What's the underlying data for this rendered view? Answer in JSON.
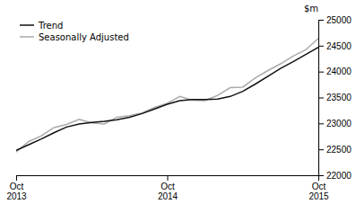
{
  "chart_data": {
    "type": "line",
    "y_label": "$m",
    "categories": [
      "Oct\n2013",
      null,
      null,
      null,
      null,
      null,
      null,
      null,
      null,
      null,
      null,
      null,
      "Oct\n2014",
      null,
      null,
      null,
      null,
      null,
      null,
      null,
      null,
      null,
      null,
      null,
      "Oct\n2015"
    ],
    "series": [
      {
        "name": "Seasonally Adjusted",
        "color": "#aaaaaa",
        "values": [
          22450,
          22650,
          22760,
          22920,
          22980,
          23080,
          23010,
          22990,
          23120,
          23150,
          23200,
          23310,
          23390,
          23520,
          23450,
          23440,
          23540,
          23690,
          23700,
          23880,
          24020,
          24150,
          24300,
          24420,
          24640
        ]
      },
      {
        "name": "Trend",
        "color": "#111111",
        "values": [
          22480,
          22590,
          22700,
          22820,
          22930,
          22990,
          23020,
          23040,
          23070,
          23120,
          23190,
          23280,
          23370,
          23440,
          23460,
          23460,
          23470,
          23520,
          23620,
          23760,
          23910,
          24060,
          24190,
          24330,
          24470
        ]
      }
    ],
    "ylim": [
      22000,
      25000
    ],
    "yticks": [
      22000,
      22500,
      23000,
      23500,
      24000,
      24500,
      25000
    ],
    "grid": false,
    "legend": "upper left"
  }
}
